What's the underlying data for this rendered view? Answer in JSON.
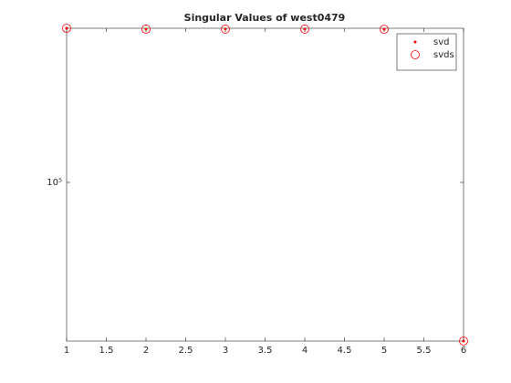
{
  "chart_data": {
    "type": "scatter",
    "title": "Singular Values of west0479",
    "x": [
      1,
      2,
      3,
      4,
      5,
      6
    ],
    "series": [
      {
        "name": "svd",
        "color": "#ff0000",
        "marker": "dot",
        "values": [
          319000,
          317000,
          317000,
          317000,
          316500,
          30300
        ]
      },
      {
        "name": "svds",
        "color": "#ff0000",
        "marker": "circle",
        "values": [
          319000,
          317000,
          317000,
          317000,
          316500,
          30300
        ]
      }
    ],
    "xlim": [
      1,
      6
    ],
    "xticks": [
      1,
      1.5,
      2,
      2.5,
      3,
      3.5,
      4,
      4.5,
      5,
      5.5,
      6
    ],
    "ylim": [
      30300,
      319000
    ],
    "yticks": [
      {
        "value": 100000,
        "label": "10⁵"
      }
    ],
    "yscale": "log",
    "grid": false,
    "legend": "northeast"
  }
}
